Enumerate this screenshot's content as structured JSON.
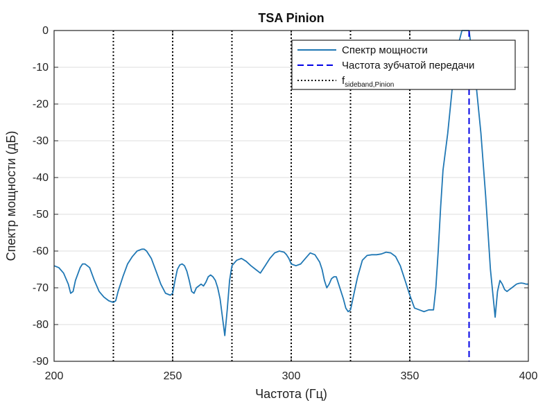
{
  "chart_data": {
    "type": "line",
    "title": "TSA Pinion",
    "xlabel": "Частота (Гц)",
    "ylabel": "Спектр мощности (дБ)",
    "xlim": [
      200,
      400
    ],
    "ylim": [
      -90,
      0
    ],
    "xticks": [
      200,
      250,
      300,
      350,
      400
    ],
    "yticks": [
      0,
      -10,
      -20,
      -30,
      -40,
      -50,
      -60,
      -70,
      -80,
      -90
    ],
    "grid": true,
    "legend_position": "top-right",
    "series": [
      {
        "name": "Спектр мощности",
        "style": "solid",
        "color": "#1f77b4",
        "x": [
          200,
          202,
          204,
          206,
          207,
          208,
          209,
          211,
          212,
          213,
          215,
          217,
          219,
          221,
          223,
          225,
          226,
          227,
          229,
          231,
          233,
          235,
          237,
          238,
          239,
          241,
          243,
          245,
          247,
          249,
          250,
          251,
          252,
          253,
          254,
          255,
          256,
          257,
          258,
          259,
          260,
          261,
          262,
          263,
          264,
          265,
          266,
          267,
          268,
          269,
          270,
          271,
          272,
          273,
          274,
          275,
          277,
          279,
          281,
          283,
          285,
          287,
          289,
          291,
          293,
          295,
          297,
          298,
          299,
          300,
          302,
          304,
          306,
          308,
          310,
          312,
          313,
          314,
          315,
          316,
          317,
          318,
          319,
          320,
          321,
          322,
          323,
          324,
          325,
          326,
          327,
          328,
          330,
          332,
          334,
          336,
          338,
          340,
          342,
          344,
          346,
          348,
          350,
          352,
          354,
          356,
          358,
          360,
          361,
          362,
          363,
          364,
          366,
          368,
          370,
          372,
          374,
          375,
          376,
          378,
          380,
          382,
          384,
          386,
          387,
          388,
          389,
          390,
          391,
          392,
          393,
          394,
          395,
          396,
          397,
          398,
          399,
          400
        ],
        "values": [
          -64,
          -64.5,
          -66,
          -69,
          -71.5,
          -71,
          -68,
          -64.5,
          -63.5,
          -63.5,
          -64.5,
          -68,
          -71,
          -72.5,
          -73.5,
          -74,
          -73.5,
          -71,
          -67,
          -63.5,
          -61.5,
          -60,
          -59.5,
          -59.5,
          -60,
          -62,
          -65.5,
          -69,
          -71.5,
          -72,
          -71.5,
          -68,
          -65,
          -63.8,
          -63.5,
          -64,
          -65.5,
          -68,
          -71,
          -71.5,
          -70,
          -69.5,
          -69,
          -69.5,
          -68.5,
          -67,
          -66.5,
          -67,
          -68,
          -70,
          -73,
          -78,
          -83,
          -76,
          -68,
          -64,
          -62.5,
          -62,
          -62.8,
          -64,
          -65,
          -66,
          -64,
          -62,
          -60.5,
          -60,
          -60.3,
          -61,
          -62,
          -63.5,
          -64,
          -63.5,
          -62,
          -60.5,
          -61,
          -63,
          -65,
          -68,
          -70,
          -69,
          -67.5,
          -67,
          -67,
          -69,
          -71,
          -73,
          -75.5,
          -76.5,
          -76,
          -73,
          -70,
          -67,
          -62.5,
          -61.2,
          -61,
          -61,
          -60.8,
          -60.3,
          -60.5,
          -61.5,
          -64,
          -68,
          -72,
          -75.5,
          -76,
          -76.5,
          -76,
          -76,
          -70,
          -60,
          -48,
          -38,
          -28,
          -15,
          -5,
          0,
          0,
          0,
          -5,
          -15,
          -28,
          -45,
          -65,
          -78,
          -71,
          -68,
          -69,
          -70.5,
          -71,
          -70.5,
          -70,
          -69.5,
          -69,
          -68.8,
          -68.7,
          -68.8,
          -69,
          -69
        ]
      },
      {
        "name": "Частота зубчатой передачи",
        "style": "dashed",
        "color": "#0000e6",
        "x": [
          375
        ]
      },
      {
        "name": "f",
        "name_subscript": "sideband,Pinion",
        "style": "dotted",
        "color": "#000000",
        "x": [
          225,
          250,
          275,
          300,
          325,
          350
        ]
      }
    ]
  }
}
